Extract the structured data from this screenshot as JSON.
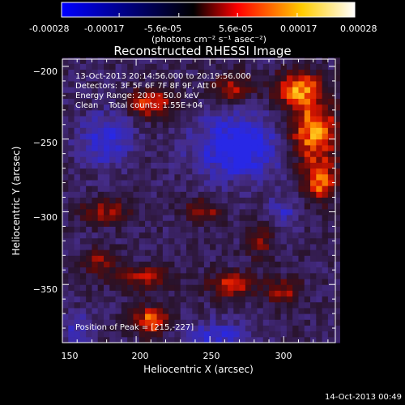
{
  "colorbar": {
    "tick_labels": [
      "-0.00028",
      "-0.00017",
      "-5.6e-05",
      "5.6e-05",
      "0.00017",
      "0.00028"
    ],
    "tick_values": [
      -0.00028,
      -0.00017,
      -5.6e-05,
      5.6e-05,
      0.00017,
      0.00028
    ],
    "range": [
      -0.00028,
      0.00028
    ],
    "units_label": "(photons cm⁻² s⁻¹ asec⁻²)",
    "colors": [
      "#0000ff",
      "#000000",
      "#ff0000",
      "#ffff00",
      "#ffffff"
    ]
  },
  "chart_data": {
    "type": "heatmap",
    "title": "Reconstructed RHESSI Image",
    "xlabel": "Heliocentric X (arcsec)",
    "ylabel": "Heliocentric Y (arcsec)",
    "xlim": [
      150,
      335
    ],
    "ylim": [
      -390,
      -195
    ],
    "xticks": [
      150,
      200,
      250,
      300
    ],
    "yticks": [
      -200,
      -250,
      -300,
      -350
    ],
    "xtick_labels": [
      "150",
      "200",
      "250",
      "300"
    ],
    "ytick_labels": [
      "−200",
      "−250",
      "−300",
      "−350"
    ],
    "peak": [
      215,
      -227
    ],
    "annotations": [
      "13-Oct-2013 20:14:56.000 to 20:19:56.000",
      "Detectors: 3F 5F 6F 7F 8F 9F, Att 0",
      "Energy Range: 20.0 - 50.0 keV",
      "Clean    Total counts: 1.55E+04"
    ],
    "peak_label": "Position of Peak = [215,-227]",
    "hot_spots": [
      {
        "x": 320,
        "y": -245,
        "amp": 1.0,
        "sx": 18,
        "sy": 22
      },
      {
        "x": 310,
        "y": -215,
        "amp": 0.9,
        "sx": 16,
        "sy": 12
      },
      {
        "x": 325,
        "y": -280,
        "amp": 0.8,
        "sx": 12,
        "sy": 14
      },
      {
        "x": 210,
        "y": -225,
        "amp": 0.75,
        "sx": 16,
        "sy": 10
      },
      {
        "x": 265,
        "y": -215,
        "amp": 0.6,
        "sx": 14,
        "sy": 10
      },
      {
        "x": 180,
        "y": -300,
        "amp": 0.55,
        "sx": 18,
        "sy": 8
      },
      {
        "x": 245,
        "y": -300,
        "amp": 0.6,
        "sx": 12,
        "sy": 8
      },
      {
        "x": 210,
        "y": -375,
        "amp": 0.9,
        "sx": 12,
        "sy": 10
      },
      {
        "x": 205,
        "y": -345,
        "amp": 0.6,
        "sx": 18,
        "sy": 8
      },
      {
        "x": 265,
        "y": -350,
        "amp": 0.65,
        "sx": 16,
        "sy": 9
      },
      {
        "x": 300,
        "y": -355,
        "amp": 0.55,
        "sx": 12,
        "sy": 10
      },
      {
        "x": 175,
        "y": -335,
        "amp": 0.5,
        "sx": 10,
        "sy": 10
      },
      {
        "x": 285,
        "y": -320,
        "amp": 0.45,
        "sx": 10,
        "sy": 12
      }
    ],
    "cold_spots": [
      {
        "x": 270,
        "y": -255,
        "amp": -0.8,
        "sx": 30,
        "sy": 22
      },
      {
        "x": 180,
        "y": -250,
        "amp": -0.6,
        "sx": 18,
        "sy": 18
      },
      {
        "x": 255,
        "y": -385,
        "amp": -0.5,
        "sx": 24,
        "sy": 10
      },
      {
        "x": 300,
        "y": -300,
        "amp": -0.4,
        "sx": 10,
        "sy": 12
      },
      {
        "x": 160,
        "y": -380,
        "amp": -0.4,
        "sx": 10,
        "sy": 10
      }
    ]
  },
  "footer": {
    "timestamp": "14-Oct-2013 00:49"
  }
}
